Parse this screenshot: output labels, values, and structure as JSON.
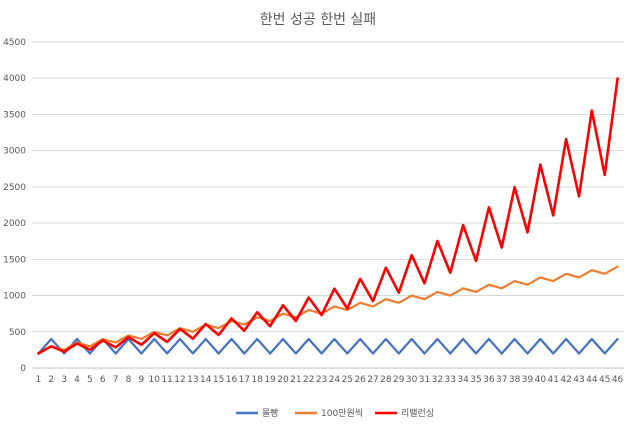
{
  "chart_data": {
    "type": "line",
    "title": "한번 성공 한번 실패",
    "xlabel": "",
    "ylabel": "",
    "x": [
      1,
      2,
      3,
      4,
      5,
      6,
      7,
      8,
      9,
      10,
      11,
      12,
      13,
      14,
      15,
      16,
      17,
      18,
      19,
      20,
      21,
      22,
      23,
      24,
      25,
      26,
      27,
      28,
      29,
      30,
      31,
      32,
      33,
      34,
      35,
      36,
      37,
      38,
      39,
      40,
      41,
      42,
      43,
      44,
      45,
      46
    ],
    "ylim": [
      0,
      4500
    ],
    "yticks": [
      0,
      500,
      1000,
      1500,
      2000,
      2500,
      3000,
      3500,
      4000,
      4500
    ],
    "grid": true,
    "legend_position": "bottom",
    "series": [
      {
        "name": "몰빵",
        "color": "#4472c4",
        "values": [
          200,
          400,
          200,
          400,
          200,
          400,
          200,
          400,
          200,
          400,
          200,
          400,
          200,
          400,
          200,
          400,
          200,
          400,
          200,
          400,
          200,
          400,
          200,
          400,
          200,
          400,
          200,
          400,
          200,
          400,
          200,
          400,
          200,
          400,
          200,
          400,
          200,
          400,
          200,
          400,
          200,
          400,
          200,
          400,
          200,
          400
        ]
      },
      {
        "name": "100만원씩",
        "color": "#ed7d31",
        "values": [
          200,
          300,
          250,
          350,
          300,
          400,
          350,
          450,
          400,
          500,
          450,
          550,
          500,
          600,
          550,
          650,
          600,
          700,
          650,
          750,
          700,
          800,
          750,
          850,
          800,
          900,
          850,
          950,
          900,
          1000,
          950,
          1050,
          1000,
          1100,
          1050,
          1150,
          1100,
          1200,
          1150,
          1250,
          1200,
          1300,
          1250,
          1350,
          1300,
          1400
        ]
      },
      {
        "name": "리밸런싱",
        "color": "#ff0000",
        "values": [
          200,
          300,
          225,
          338,
          253,
          380,
          285,
          427,
          320,
          480,
          360,
          540,
          405,
          608,
          456,
          684,
          513,
          769,
          577,
          865,
          649,
          973,
          730,
          1095,
          821,
          1231,
          923,
          1385,
          1039,
          1558,
          1169,
          1753,
          1315,
          1972,
          1479,
          2218,
          1664,
          2496,
          1872,
          2808,
          2106,
          3159,
          2369,
          3554,
          2665,
          3998
        ]
      }
    ]
  }
}
